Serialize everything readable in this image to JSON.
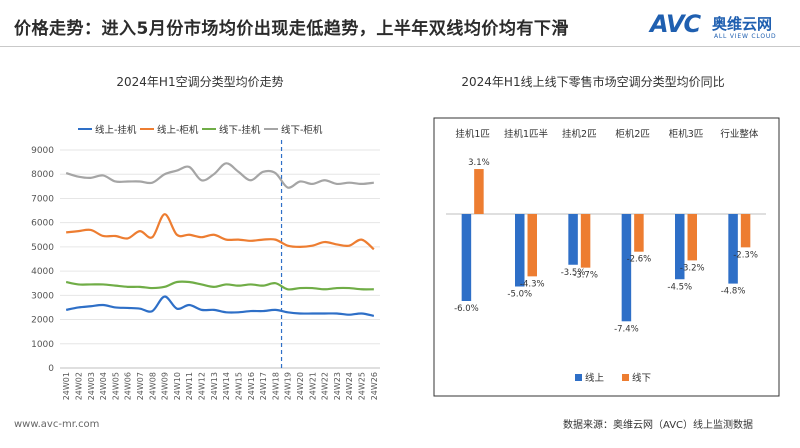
{
  "header": {
    "title": "价格走势：进入5月份市场均价出现走低趋势，上半年双线均价均有下滑",
    "brand_avc": "AVC",
    "brand_cn": "奥维云网",
    "brand_en": "ALL VIEW CLOUD"
  },
  "footer": {
    "url": "www.avc-mr.com",
    "source": "数据来源：奥维云网（AVC）线上监测数据"
  },
  "colors": {
    "line_online_wall": "#2e6fc7",
    "line_online_cabinet": "#ed7d31",
    "line_offline_wall": "#70ad47",
    "line_offline_cabinet": "#a5a5a5",
    "bar_online": "#2e6fc7",
    "bar_offline": "#ed7d31"
  },
  "chart_data": [
    {
      "type": "line",
      "title": "2024年H1空调分类型均价走势",
      "ylim": [
        0,
        9000
      ],
      "yticks": [
        "0",
        "1000",
        "2000",
        "3000",
        "4000",
        "5000",
        "6000",
        "7000",
        "8000",
        "9000"
      ],
      "x": [
        "24W01",
        "24W02",
        "24W03",
        "24W04",
        "24W05",
        "24W06",
        "24W07",
        "24W08",
        "24W09",
        "24W10",
        "24W11",
        "24W12",
        "24W13",
        "24W14",
        "24W15",
        "24W16",
        "24W17",
        "24W18",
        "24W19",
        "24W20",
        "24W21",
        "24W22",
        "24W23",
        "24W24",
        "24W25",
        "24W26"
      ],
      "reference_line_after": "24W18",
      "series": [
        {
          "name": "线上-挂机",
          "values": [
            2400,
            2500,
            2550,
            2600,
            2500,
            2480,
            2450,
            2350,
            2950,
            2450,
            2600,
            2400,
            2400,
            2300,
            2300,
            2350,
            2350,
            2400,
            2300,
            2250,
            2250,
            2250,
            2250,
            2200,
            2250,
            2150
          ]
        },
        {
          "name": "线上-柜机",
          "values": [
            5600,
            5650,
            5700,
            5450,
            5450,
            5350,
            5650,
            5400,
            6350,
            5500,
            5500,
            5400,
            5500,
            5300,
            5300,
            5250,
            5300,
            5300,
            5050,
            5000,
            5050,
            5200,
            5100,
            5050,
            5300,
            4900
          ]
        },
        {
          "name": "线下-挂机",
          "values": [
            3550,
            3450,
            3450,
            3450,
            3400,
            3350,
            3350,
            3300,
            3350,
            3550,
            3550,
            3450,
            3350,
            3450,
            3400,
            3450,
            3400,
            3500,
            3250,
            3300,
            3300,
            3250,
            3300,
            3300,
            3250,
            3250
          ]
        },
        {
          "name": "线下-柜机",
          "values": [
            8050,
            7900,
            7850,
            7950,
            7700,
            7700,
            7700,
            7650,
            8000,
            8150,
            8300,
            7750,
            8000,
            8450,
            8100,
            7750,
            8100,
            8050,
            7450,
            7700,
            7600,
            7750,
            7600,
            7650,
            7600,
            7650
          ]
        }
      ]
    },
    {
      "type": "bar",
      "title": "2024年H1线上线下零售市场空调分类型均价同比",
      "categories": [
        "挂机1匹",
        "挂机1匹半",
        "挂机2匹",
        "柜机2匹",
        "柜机3匹",
        "行业整体"
      ],
      "series": [
        {
          "name": "线上",
          "values": [
            -6.0,
            -5.0,
            -3.5,
            -7.4,
            -4.5,
            -4.8
          ],
          "labels": [
            "-6.0%",
            "-5.0%",
            "-3.5%",
            "-7.4%",
            "-4.5%",
            "-4.8%"
          ]
        },
        {
          "name": "线下",
          "values": [
            3.1,
            -4.3,
            -3.7,
            -2.6,
            -3.2,
            -2.3
          ],
          "labels": [
            "3.1%",
            "-4.3%",
            "-3.7%",
            "-2.6%",
            "-3.2%",
            "-2.3%"
          ]
        }
      ]
    }
  ]
}
